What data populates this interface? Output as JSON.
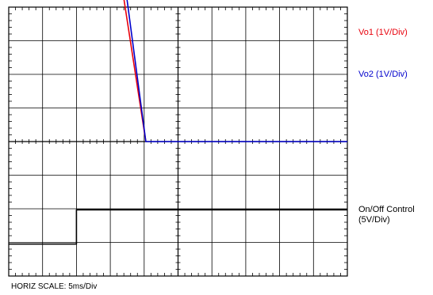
{
  "chart_data": {
    "type": "line",
    "title": "",
    "xlabel": "HORIZ SCALE: 5ms/Div",
    "ylabel": "",
    "grid": true,
    "x_divisions": 10,
    "y_divisions": 8,
    "xlim": [
      0,
      10
    ],
    "ylim": [
      0,
      8
    ],
    "series": [
      {
        "name": "Vo1 (1V/Div)",
        "color": "#e8000b",
        "points": [
          [
            0,
            7.65
          ],
          [
            2.88,
            7.65
          ],
          [
            4.05,
            0
          ]
        ]
      },
      {
        "name": "Vo2 (1V/Div)",
        "color": "#0000cc",
        "points": [
          [
            0,
            6.0
          ],
          [
            3.26,
            6.0
          ],
          [
            4.05,
            0
          ],
          [
            10,
            0
          ]
        ]
      },
      {
        "name": "On/Off Control",
        "sublabel": "(5V/Div)",
        "color": "#000000",
        "points": [
          [
            0,
            -3.05
          ],
          [
            2.0,
            -3.05
          ],
          [
            2.0,
            -2.03
          ],
          [
            10,
            -2.03
          ]
        ]
      }
    ]
  }
}
